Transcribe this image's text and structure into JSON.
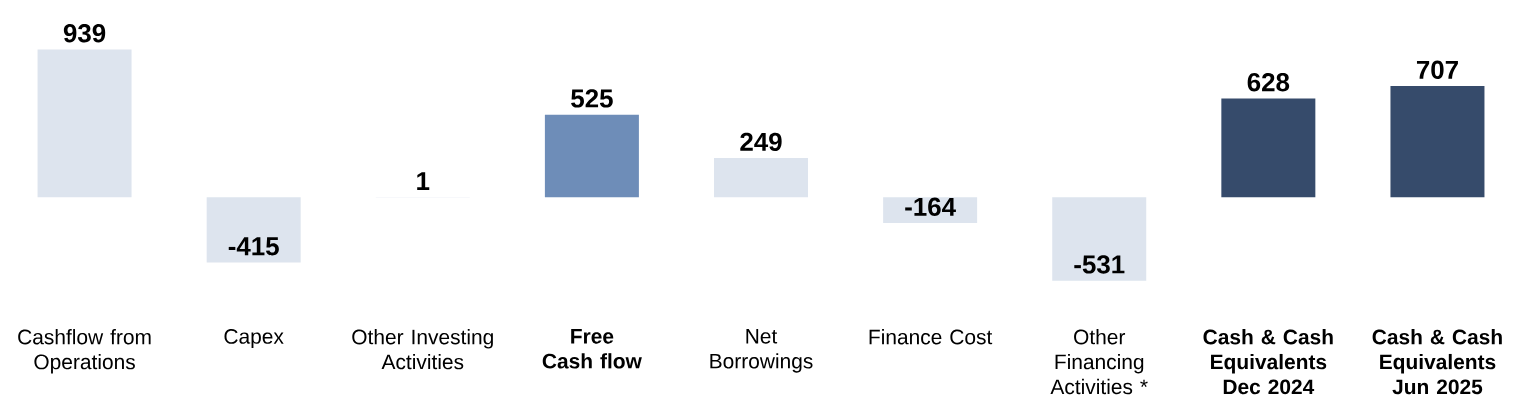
{
  "chart_data": {
    "type": "bar",
    "categories": [
      "Cashflow from Operations",
      "Capex",
      "Other Investing Activities",
      "**Free Cash flow**",
      "Net Borrowings",
      "Finance Cost",
      "Other Financing Activities *",
      "**Cash & Cash Equivalents Dec 2024**",
      "**Cash & Cash Equivalents Jun 2025**"
    ],
    "values": [
      939,
      -415,
      1,
      525,
      249,
      -164,
      -531,
      628,
      707
    ],
    "colors": [
      "#dde4ee",
      "#dde4ee",
      "#dde4ee",
      "#6e8db8",
      "#dde4ee",
      "#dde4ee",
      "#dde4ee",
      "#364b6b",
      "#364b6b"
    ],
    "data_labels": true
  }
}
